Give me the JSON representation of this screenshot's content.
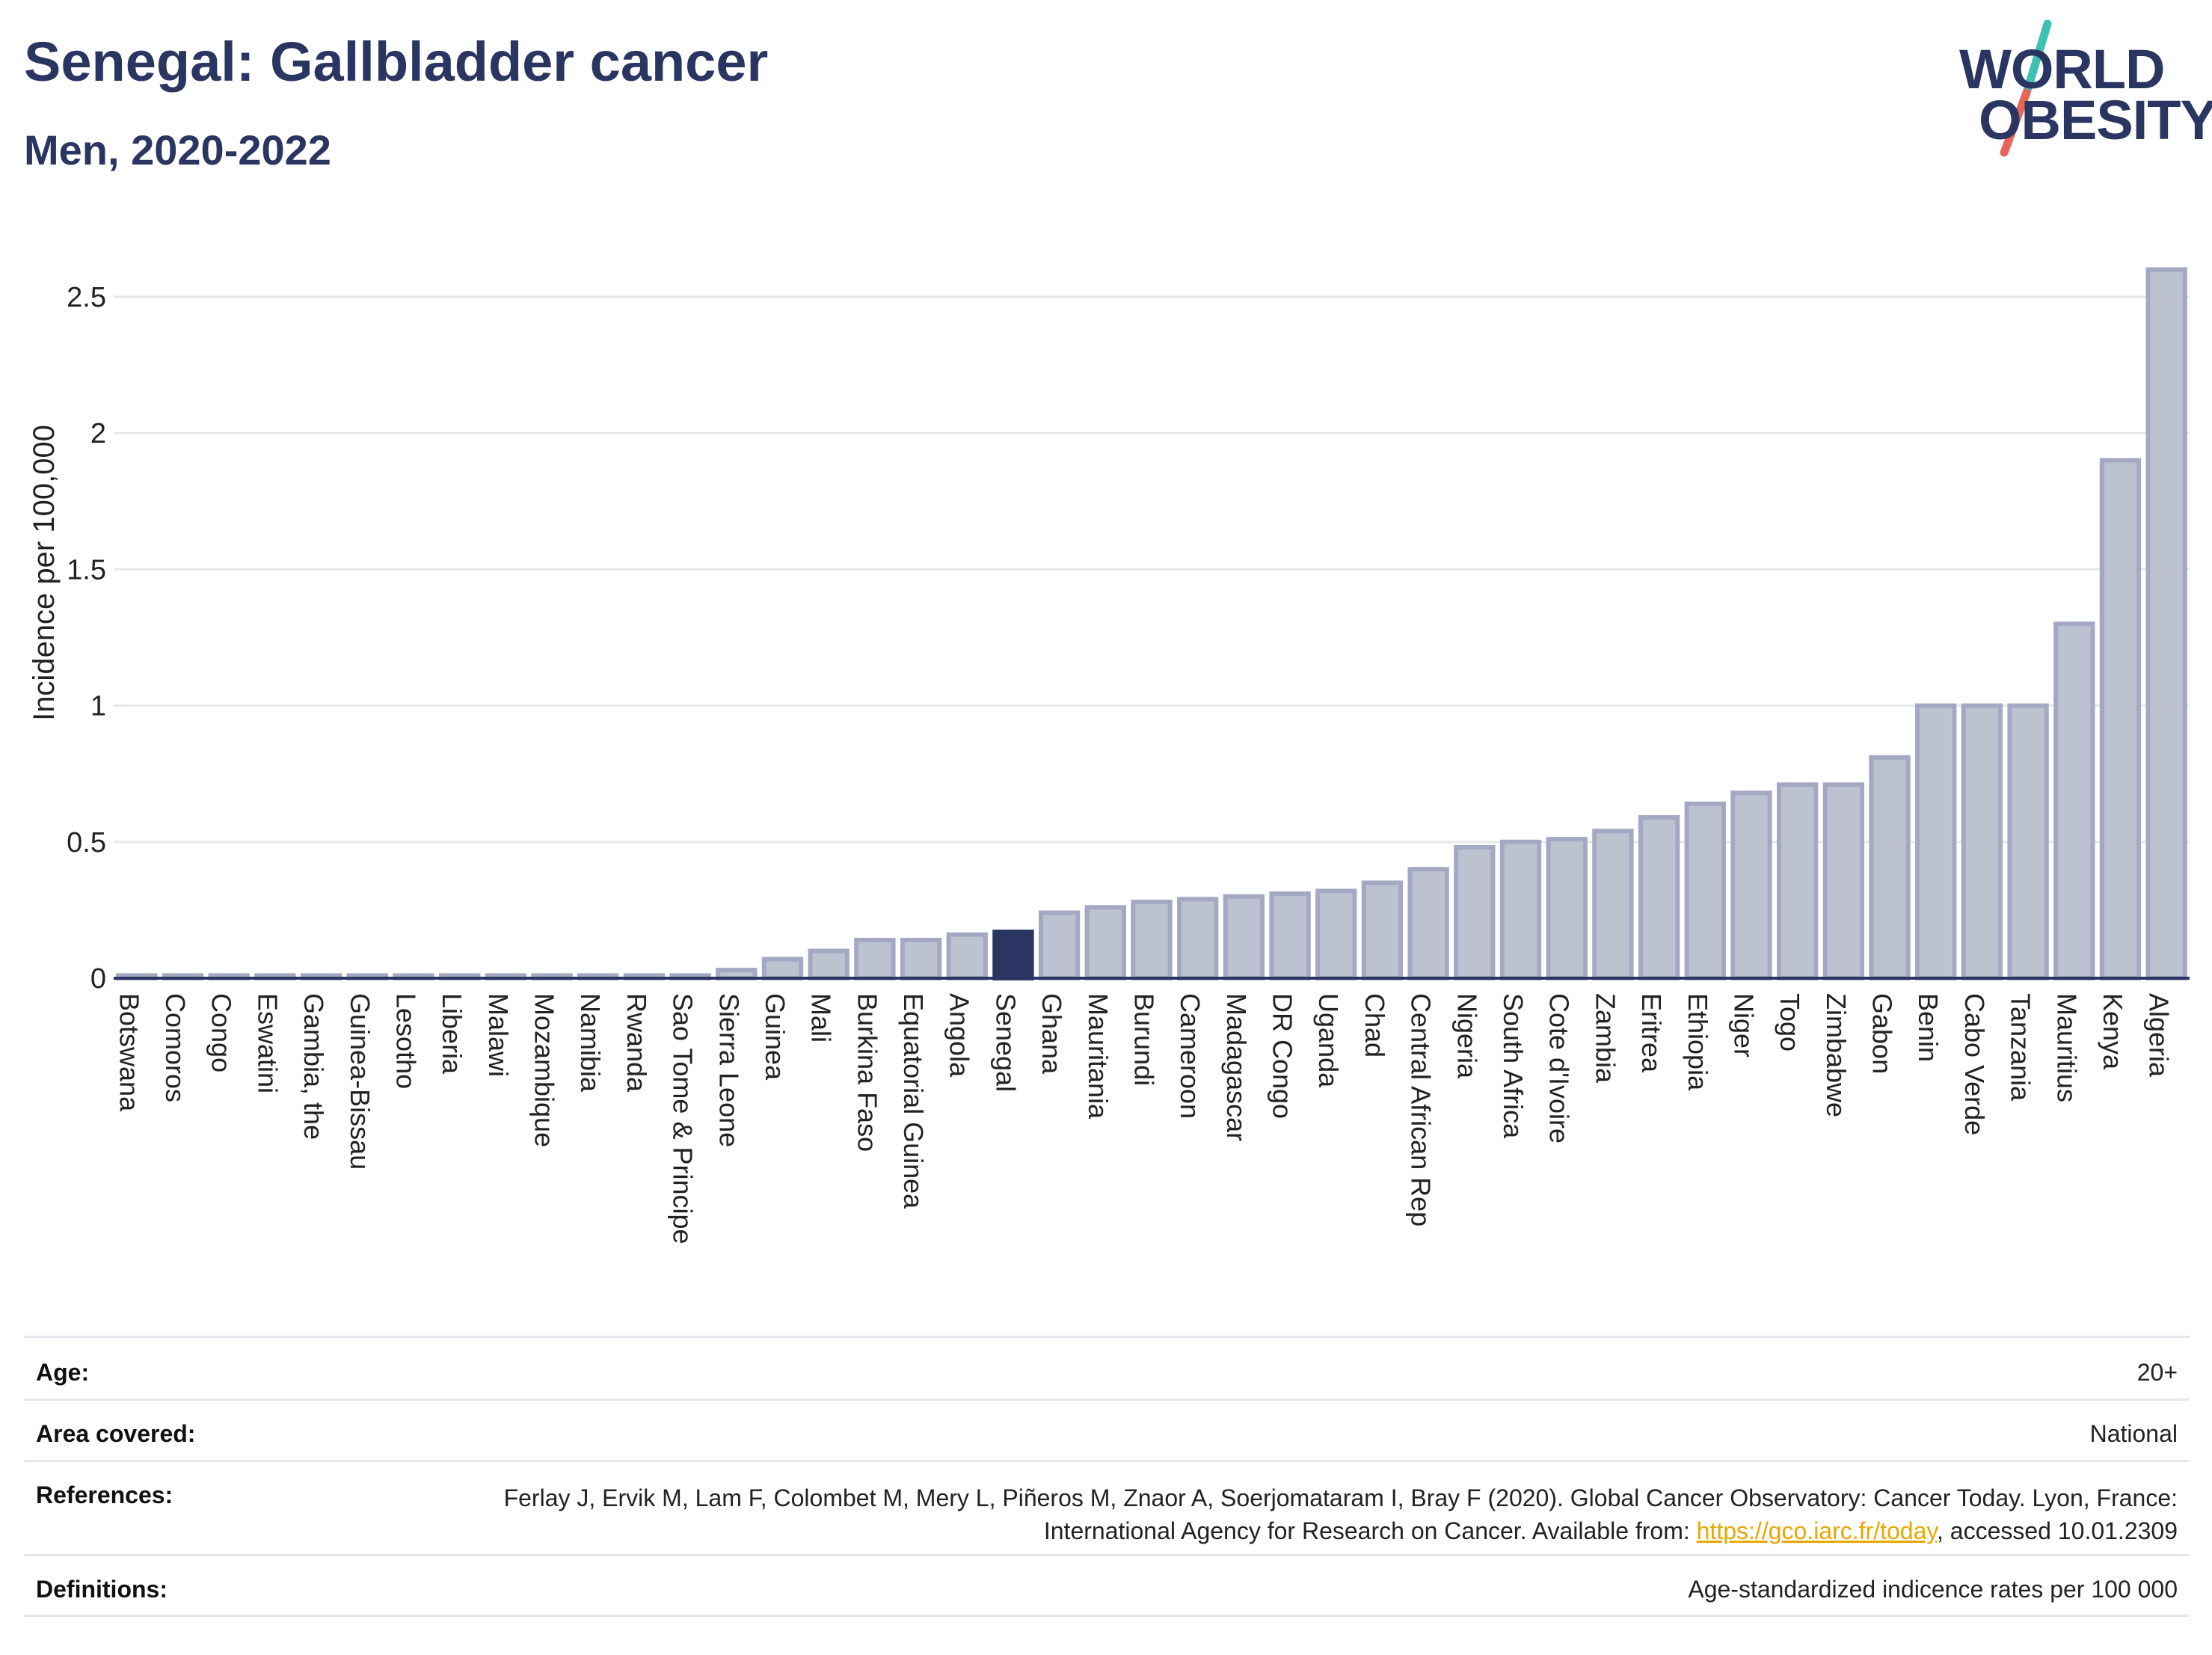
{
  "header": {
    "title": "Senegal: Gallbladder cancer",
    "subtitle": "Men, 2020-2022"
  },
  "logo": {
    "line1": "WORLD",
    "line2": "OBESITY",
    "colors": {
      "text": "#2a3561",
      "slash_top": "#3ec1b2",
      "slash_bottom": "#e8645a"
    }
  },
  "chart_data": {
    "type": "bar",
    "ylabel": "Incidence per 100,000",
    "ylim": [
      0,
      2.7
    ],
    "yticks": [
      0,
      0.5,
      1,
      1.5,
      2,
      2.5
    ],
    "ytick_labels": [
      "0",
      "0.5",
      "1",
      "1.5",
      "2",
      "2.5"
    ],
    "grid": true,
    "highlight": "Senegal",
    "colors": {
      "bar": "#bdc2d1",
      "bar_edge": "#a3a9c2",
      "highlight": "#2a3561",
      "grid": "#e6e8ee",
      "axis": "#2a3561"
    },
    "categories": [
      "Botswana",
      "Comoros",
      "Congo",
      "Eswatini",
      "Gambia, the",
      "Guinea-Bissau",
      "Lesotho",
      "Liberia",
      "Malawi",
      "Mozambique",
      "Namibia",
      "Rwanda",
      "Sao Tome & Principe",
      "Sierra Leone",
      "Guinea",
      "Mali",
      "Burkina Faso",
      "Equatorial Guinea",
      "Angola",
      "Senegal",
      "Ghana",
      "Mauritania",
      "Burundi",
      "Cameroon",
      "Madagascar",
      "DR Congo",
      "Uganda",
      "Chad",
      "Central African Rep",
      "Nigeria",
      "South Africa",
      "Cote d'Ivoire",
      "Zambia",
      "Eritrea",
      "Ethiopia",
      "Niger",
      "Togo",
      "Zimbabwe",
      "Gabon",
      "Benin",
      "Cabo Verde",
      "Tanzania",
      "Mauritius",
      "Kenya",
      "Algeria"
    ],
    "values": [
      0.01,
      0.01,
      0.01,
      0.01,
      0.01,
      0.01,
      0.01,
      0.01,
      0.01,
      0.01,
      0.01,
      0.01,
      0.01,
      0.03,
      0.07,
      0.1,
      0.14,
      0.14,
      0.16,
      0.17,
      0.24,
      0.26,
      0.28,
      0.29,
      0.3,
      0.31,
      0.32,
      0.35,
      0.4,
      0.48,
      0.5,
      0.51,
      0.54,
      0.59,
      0.64,
      0.68,
      0.71,
      0.71,
      0.81,
      1.0,
      1.0,
      1.0,
      1.3,
      1.9,
      2.6
    ]
  },
  "info": {
    "age_label": "Age:",
    "age_value": "20+",
    "area_label": "Area covered:",
    "area_value": "National",
    "ref_label": "References:",
    "ref_text_1": "Ferlay J, Ervik M, Lam F, Colombet M, Mery L, Piñeros M, Znaor A, Soerjomataram I, Bray F (2020). Global Cancer Observatory: Cancer Today. Lyon, France: International Agency for Research on Cancer. Available from: ",
    "ref_link": "https://gco.iarc.fr/today",
    "ref_text_2": ", accessed 10.01.2309",
    "def_label": "Definitions:",
    "def_value": "Age-standardized indicence rates per 100 000"
  }
}
